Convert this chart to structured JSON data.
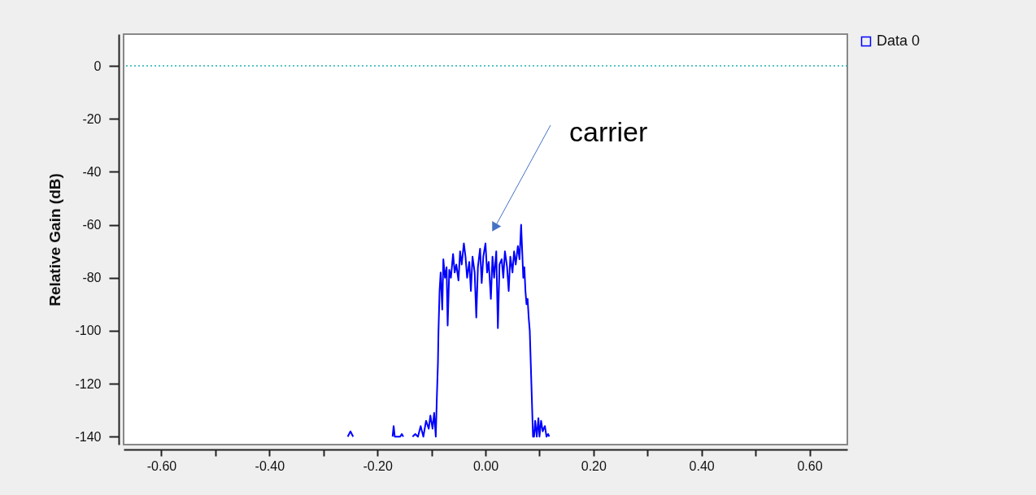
{
  "chart_data": {
    "type": "line",
    "ylabel": "Relative Gain (dB)",
    "legend": "top right",
    "xlim": [
      -0.67,
      0.67
    ],
    "ylim": [
      -143,
      12
    ],
    "xticks": [
      {
        "value": -0.6,
        "label": "-0.60"
      },
      {
        "value": -0.5,
        "label": null
      },
      {
        "value": -0.4,
        "label": "-0.40"
      },
      {
        "value": -0.3,
        "label": null
      },
      {
        "value": -0.2,
        "label": "-0.20"
      },
      {
        "value": -0.1,
        "label": null
      },
      {
        "value": 0,
        "label": "0.00"
      },
      {
        "value": 0.1,
        "label": null
      },
      {
        "value": 0.2,
        "label": "0.20"
      },
      {
        "value": 0.3,
        "label": null
      },
      {
        "value": 0.4,
        "label": "0.40"
      },
      {
        "value": 0.5,
        "label": null
      },
      {
        "value": 0.6,
        "label": "0.60"
      }
    ],
    "yticks": [
      -140,
      -120,
      -100,
      -80,
      -60,
      -40,
      -20,
      0
    ],
    "grid": false,
    "marker": "none",
    "line_style": "solid",
    "ref_lines": [
      {
        "axis": "y",
        "value": 0,
        "color": "#20b2b2",
        "line_style": "dotted"
      }
    ],
    "annotations": [
      "carrier"
    ],
    "x": [
      -0.255,
      -0.25,
      -0.245,
      -0.2,
      -0.172,
      -0.17,
      -0.168,
      -0.158,
      -0.155,
      -0.152,
      -0.14,
      -0.135,
      -0.13,
      -0.125,
      -0.12,
      -0.115,
      -0.11,
      -0.105,
      -0.102,
      -0.098,
      -0.095,
      -0.092,
      -0.09,
      -0.088,
      -0.087,
      -0.085,
      -0.083,
      -0.08,
      -0.078,
      -0.075,
      -0.072,
      -0.07,
      -0.067,
      -0.064,
      -0.06,
      -0.057,
      -0.054,
      -0.05,
      -0.047,
      -0.044,
      -0.04,
      -0.037,
      -0.034,
      -0.03,
      -0.027,
      -0.024,
      -0.02,
      -0.017,
      -0.014,
      -0.01,
      -0.007,
      -0.004,
      0,
      0.003,
      0.006,
      0.01,
      0.013,
      0.016,
      0.02,
      0.023,
      0.026,
      0.03,
      0.033,
      0.036,
      0.04,
      0.043,
      0.046,
      0.05,
      0.053,
      0.056,
      0.06,
      0.063,
      0.066,
      0.068,
      0.07,
      0.072,
      0.074,
      0.076,
      0.078,
      0.08,
      0.082,
      0.085,
      0.088,
      0.09,
      0.092,
      0.095,
      0.098,
      0.1,
      0.103,
      0.106,
      0.11,
      0.113,
      0.116,
      0.118
    ],
    "series": [
      {
        "name": "Data 0",
        "color": "#0000ff",
        "values": [
          -140,
          -138,
          -140,
          null,
          -140,
          -136,
          -140,
          -140,
          -139,
          -140,
          null,
          -140,
          -139,
          -140,
          -136,
          -140,
          -134,
          -137,
          -132,
          -137,
          -131,
          -140,
          -125,
          -112,
          -100,
          -85,
          -78,
          -92,
          -73,
          -80,
          -76,
          -98,
          -77,
          -80,
          -71,
          -78,
          -75,
          -81,
          -70,
          -75,
          -67,
          -72,
          -80,
          -74,
          -85,
          -72,
          -78,
          -95,
          -76,
          -69,
          -82,
          -72,
          -67,
          -78,
          -74,
          -88,
          -72,
          -80,
          -70,
          -99,
          -75,
          -73,
          -80,
          -70,
          -76,
          -85,
          -72,
          -78,
          -70,
          -75,
          -68,
          -73,
          -60,
          -70,
          -80,
          -76,
          -85,
          -90,
          -88,
          -95,
          -100,
          -120,
          -140,
          -140,
          -134,
          -140,
          -133,
          -140,
          -134,
          -138,
          -136,
          -140,
          -139,
          -140
        ]
      }
    ]
  }
}
